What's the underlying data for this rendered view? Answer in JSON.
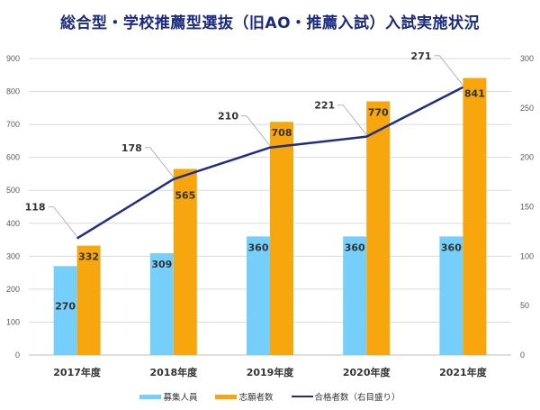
{
  "chart_data": {
    "type": "bar",
    "title": "総合型・学校推薦型選抜（旧AO・推薦入試）入試実施状況",
    "categories": [
      "2017年度",
      "2018年度",
      "2019年度",
      "2020年度",
      "2021年度"
    ],
    "series": [
      {
        "name": "募集人員",
        "type": "bar",
        "axis": "left",
        "color": "#75CFFA",
        "values": [
          270,
          309,
          360,
          360,
          360
        ]
      },
      {
        "name": "志願者数",
        "type": "bar",
        "axis": "left",
        "color": "#F7A70D",
        "values": [
          332,
          565,
          708,
          770,
          841
        ]
      },
      {
        "name": "合格者数（右目盛り）",
        "type": "line",
        "axis": "right",
        "color": "#1F2D8A",
        "values": [
          118,
          178,
          210,
          221,
          271
        ]
      }
    ],
    "left_axis": {
      "min": 0,
      "max": 900,
      "step": 100,
      "ticks": [
        "0",
        "100",
        "200",
        "300",
        "400",
        "500",
        "600",
        "700",
        "800",
        "900"
      ]
    },
    "right_axis": {
      "min": 0,
      "max": 300,
      "step": 50,
      "ticks": [
        "0",
        "50",
        "100",
        "150",
        "200",
        "250",
        "300"
      ]
    },
    "xlabel": "",
    "ylabel": "",
    "grid": true,
    "legend_position": "bottom"
  }
}
